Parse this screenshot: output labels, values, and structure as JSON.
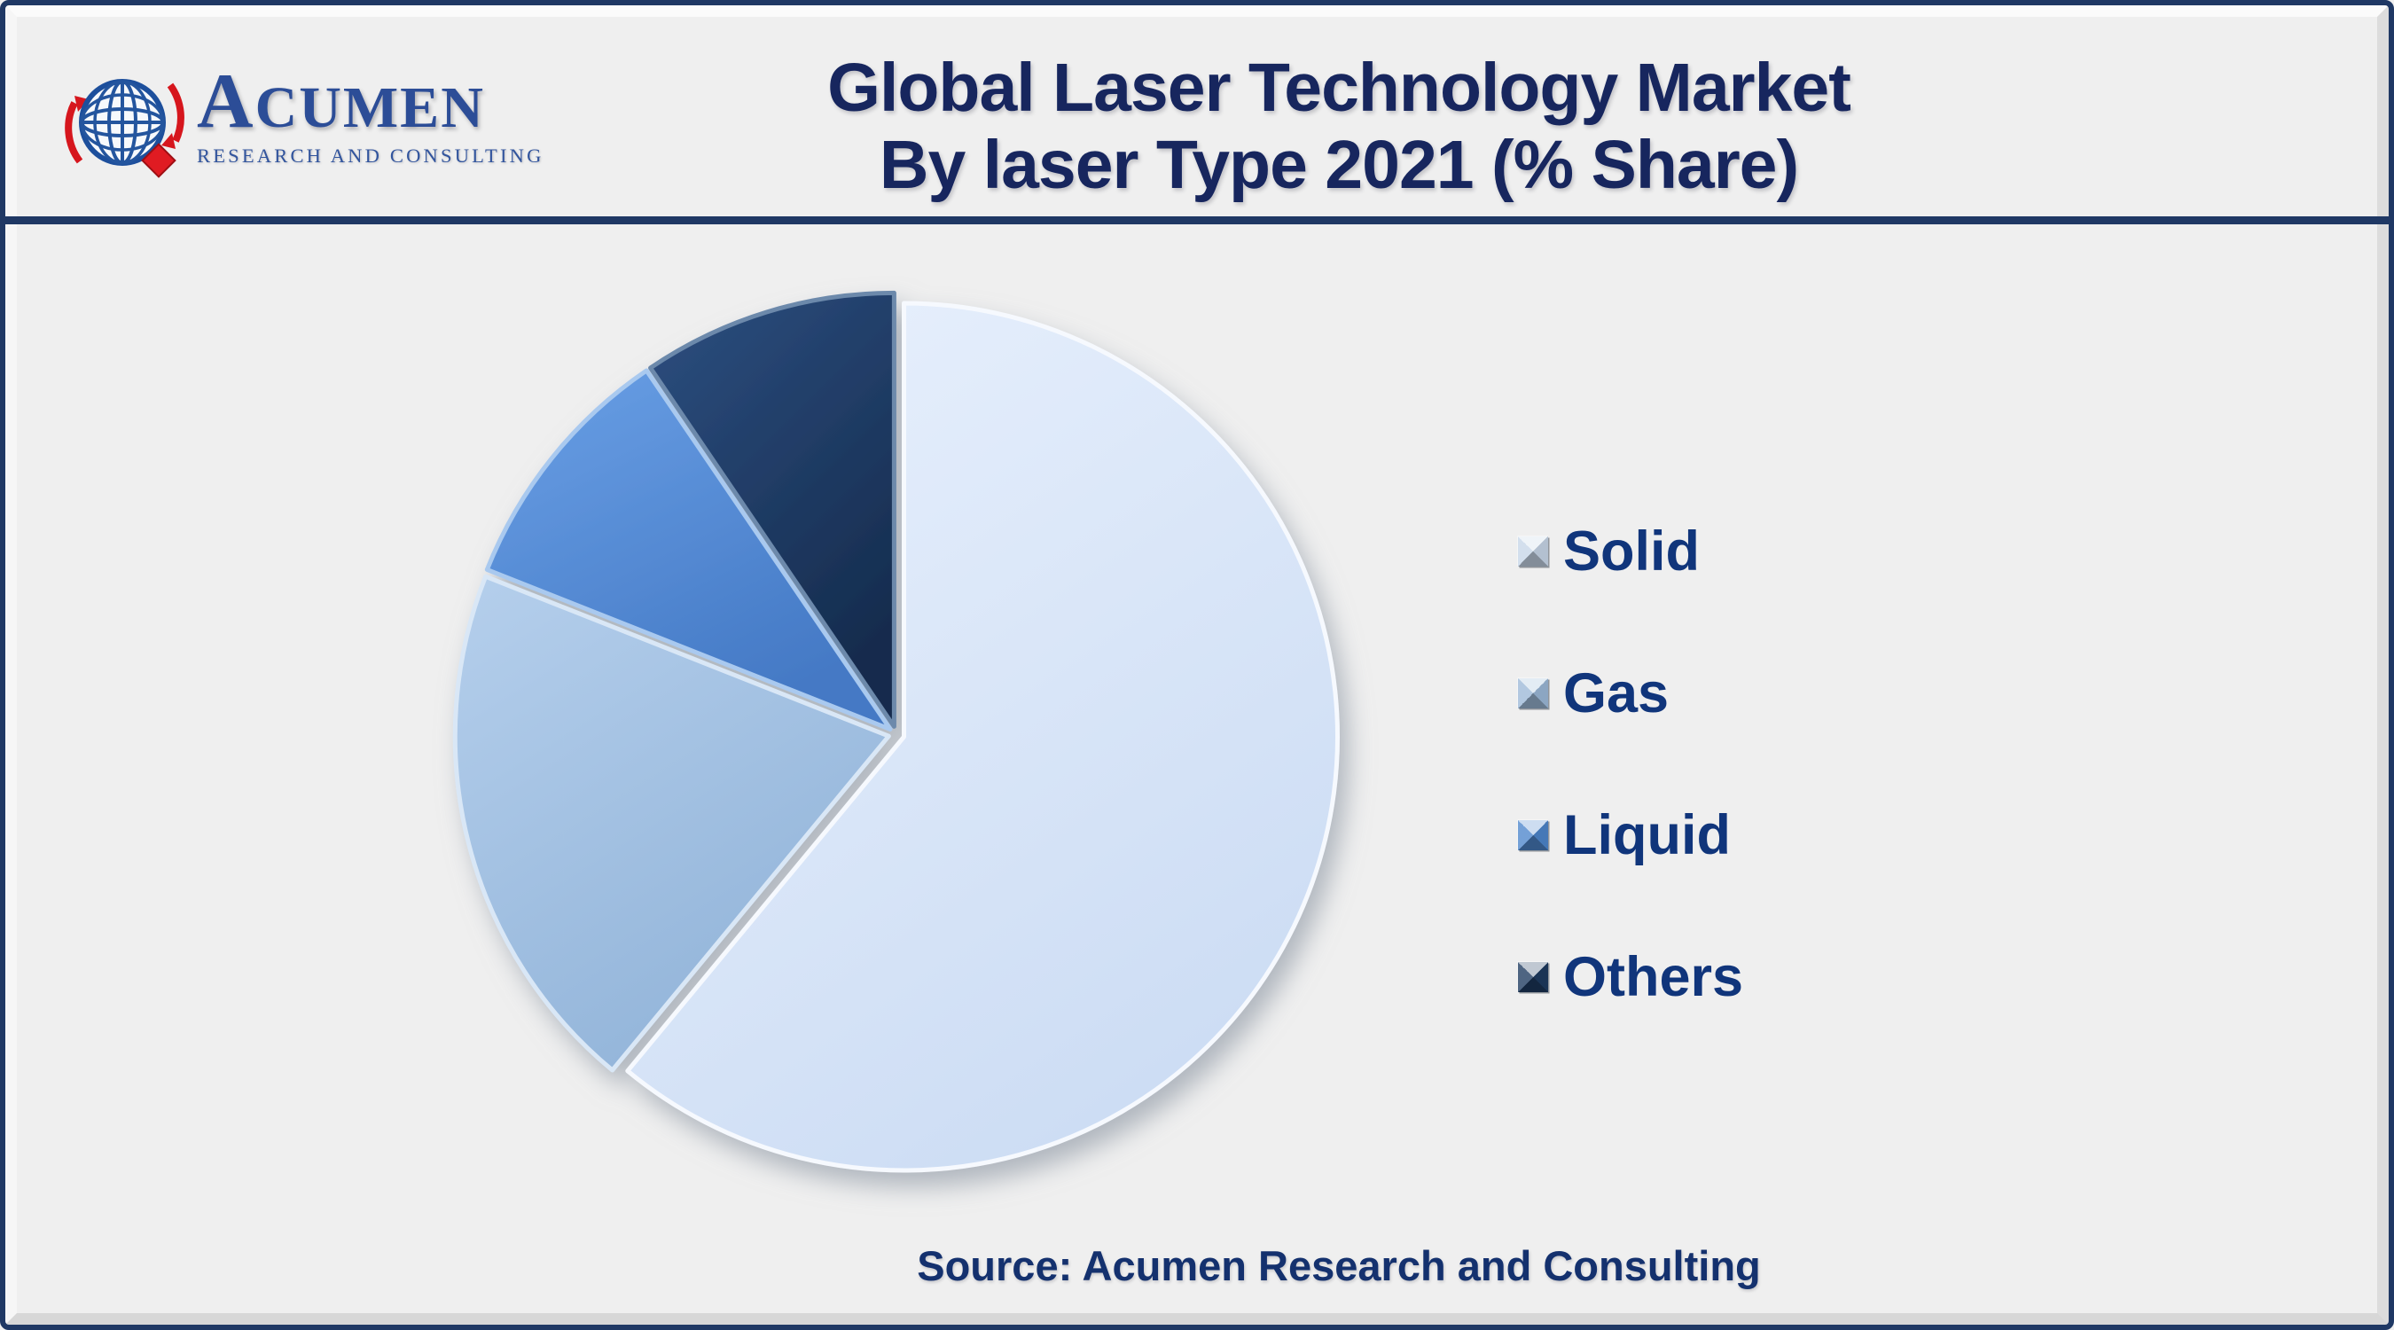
{
  "header": {
    "logo_name": "ACUMEN",
    "logo_tagline": "RESEARCH AND CONSULTING",
    "title_line1": "Global Laser Technology Market",
    "title_line2": "By laser Type 2021 (% Share)"
  },
  "footer": {
    "source": "Source: Acumen Research and Consulting"
  },
  "colors": {
    "background": "#efefef",
    "frame_border": "#1f3864",
    "title_text": "#17265e",
    "legend_text": "#10357b",
    "logo_blue": "#2c4d97",
    "logo_red": "#d6161d"
  },
  "chart_data": {
    "type": "pie",
    "title": "Global Laser Technology Market By laser Type 2021 (% Share)",
    "unit": "% share",
    "year": "2021",
    "categories": [
      "Solid",
      "Gas",
      "Liquid",
      "Others"
    ],
    "values": [
      61,
      20,
      9.5,
      9.5
    ],
    "start_angle_deg": 0,
    "direction": "clockwise",
    "legend_position": "right",
    "slices": [
      {
        "label": "Solid",
        "value": 61,
        "fill_light": "#e9f1fd",
        "fill_dark": "#cdddf4",
        "rim": "#f6f9fe",
        "swatch": "#c7d6e8"
      },
      {
        "label": "Gas",
        "value": 20,
        "fill_light": "#b5cfec",
        "fill_dark": "#92b4d9",
        "rim": "#d9e7f6",
        "swatch": "#9cb9d8"
      },
      {
        "label": "Liquid",
        "value": 9.5,
        "fill_light": "#6aa0e6",
        "fill_dark": "#4479c5",
        "rim": "#a9c9ef",
        "swatch": "#4d86cc"
      },
      {
        "label": "Others",
        "value": 9.5,
        "fill_light": "#2d4f81",
        "fill_dark": "#152c4e",
        "rim": "#6c89ab",
        "swatch": "#1d3a5f"
      }
    ]
  }
}
